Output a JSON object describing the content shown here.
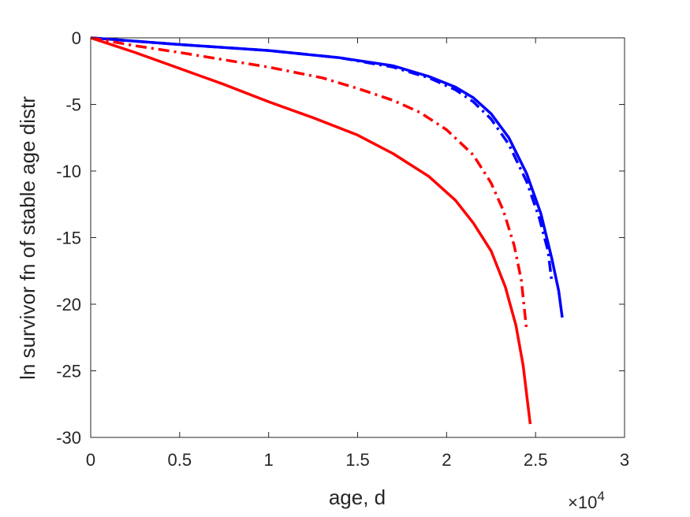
{
  "chart_data": {
    "type": "line",
    "xlabel": "age, d",
    "ylabel": "ln survivor fn of stable age distr",
    "x_exponent_label": {
      "base": "×10",
      "power": "4"
    },
    "xlim": [
      0,
      30000
    ],
    "ylim": [
      -30,
      0
    ],
    "xticks": [
      0,
      5000,
      10000,
      15000,
      20000,
      25000,
      30000
    ],
    "xtick_labels": [
      "0",
      "0.5",
      "1",
      "1.5",
      "2",
      "2.5",
      "3"
    ],
    "yticks": [
      0,
      -5,
      -10,
      -15,
      -20,
      -25,
      -30
    ],
    "ytick_labels": [
      "0",
      "-5",
      "-10",
      "-15",
      "-20",
      "-25",
      "-30"
    ],
    "grid": false,
    "series": [
      {
        "color": "#0000ff",
        "style": "solid",
        "points": [
          [
            0,
            0
          ],
          [
            2000,
            -0.2
          ],
          [
            5000,
            -0.5
          ],
          [
            10000,
            -0.95
          ],
          [
            14000,
            -1.5
          ],
          [
            17000,
            -2.1
          ],
          [
            19000,
            -2.9
          ],
          [
            20500,
            -3.7
          ],
          [
            21500,
            -4.5
          ],
          [
            22500,
            -5.7
          ],
          [
            23500,
            -7.5
          ],
          [
            24500,
            -10.2
          ],
          [
            25300,
            -13.2
          ],
          [
            25900,
            -16.5
          ],
          [
            26300,
            -19.0
          ],
          [
            26500,
            -21.0
          ]
        ]
      },
      {
        "color": "#0000ff",
        "style": "dashdot",
        "points": [
          [
            0,
            0
          ],
          [
            2000,
            -0.2
          ],
          [
            5000,
            -0.5
          ],
          [
            10000,
            -0.95
          ],
          [
            14000,
            -1.5
          ],
          [
            17000,
            -2.2
          ],
          [
            19000,
            -3.0
          ],
          [
            20500,
            -3.9
          ],
          [
            21500,
            -4.8
          ],
          [
            22500,
            -6.1
          ],
          [
            23500,
            -8.0
          ],
          [
            24500,
            -10.8
          ],
          [
            25200,
            -13.5
          ],
          [
            25700,
            -16.0
          ],
          [
            25900,
            -18.2
          ]
        ]
      },
      {
        "color": "#ff0000",
        "style": "dashdot",
        "points": [
          [
            0,
            0
          ],
          [
            2500,
            -0.6
          ],
          [
            5000,
            -1.1
          ],
          [
            10000,
            -2.2
          ],
          [
            13000,
            -3.0
          ],
          [
            15000,
            -3.8
          ],
          [
            17000,
            -4.7
          ],
          [
            18500,
            -5.6
          ],
          [
            20000,
            -6.9
          ],
          [
            21500,
            -8.8
          ],
          [
            22500,
            -10.9
          ],
          [
            23200,
            -13.0
          ],
          [
            23800,
            -15.6
          ],
          [
            24200,
            -18.2
          ],
          [
            24500,
            -22.0
          ]
        ]
      },
      {
        "color": "#ff0000",
        "style": "solid",
        "points": [
          [
            0,
            0
          ],
          [
            2500,
            -1.1
          ],
          [
            5000,
            -2.3
          ],
          [
            7500,
            -3.5
          ],
          [
            10000,
            -4.8
          ],
          [
            12500,
            -6.0
          ],
          [
            15000,
            -7.3
          ],
          [
            17000,
            -8.7
          ],
          [
            19000,
            -10.4
          ],
          [
            20500,
            -12.2
          ],
          [
            21500,
            -13.9
          ],
          [
            22500,
            -16.0
          ],
          [
            23300,
            -18.7
          ],
          [
            23900,
            -21.6
          ],
          [
            24300,
            -24.6
          ],
          [
            24700,
            -29.0
          ]
        ]
      }
    ]
  }
}
